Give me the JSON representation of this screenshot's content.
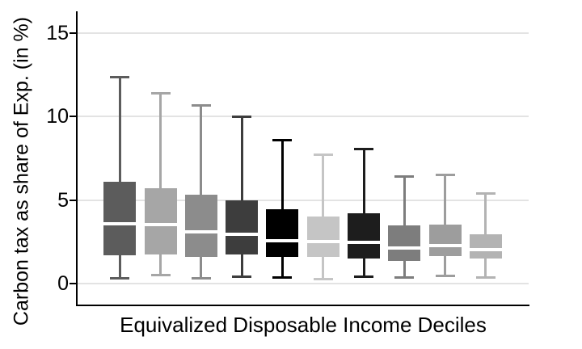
{
  "chart_data": {
    "type": "box",
    "title": "",
    "xlabel": "Equivalized Disposable Income Deciles",
    "ylabel": "Carbon tax as share of Exp. (in %)",
    "ylim": [
      0,
      16.3
    ],
    "yticks": [
      15,
      10,
      5,
      0
    ],
    "grid": true,
    "legend": "none",
    "x_tick_labels_visible": false,
    "gridline_color": "#e3e3e3",
    "axis_color": "#000000",
    "median_line_color": "#ffffff",
    "categories": [
      "1",
      "2",
      "3",
      "4",
      "5",
      "6",
      "7",
      "8",
      "9",
      "10"
    ],
    "series": [
      {
        "decile": "1",
        "whisker_low": 0.35,
        "q1": 1.7,
        "median": 3.6,
        "q3": 6.1,
        "whisker_high": 12.4,
        "color": "#5c5c5c"
      },
      {
        "decile": "2",
        "whisker_low": 0.55,
        "q1": 1.75,
        "median": 3.55,
        "q3": 5.7,
        "whisker_high": 11.4,
        "color": "#a6a6a6"
      },
      {
        "decile": "3",
        "whisker_low": 0.35,
        "q1": 1.6,
        "median": 3.1,
        "q3": 5.3,
        "whisker_high": 10.7,
        "color": "#8c8c8c"
      },
      {
        "decile": "4",
        "whisker_low": 0.45,
        "q1": 1.75,
        "median": 2.95,
        "q3": 5.0,
        "whisker_high": 10.0,
        "color": "#3d3d3d"
      },
      {
        "decile": "5",
        "whisker_low": 0.4,
        "q1": 1.6,
        "median": 2.55,
        "q3": 4.45,
        "whisker_high": 8.6,
        "color": "#000000"
      },
      {
        "decile": "6",
        "whisker_low": 0.3,
        "q1": 1.6,
        "median": 2.5,
        "q3": 4.0,
        "whisker_high": 7.75,
        "color": "#c5c5c5"
      },
      {
        "decile": "7",
        "whisker_low": 0.45,
        "q1": 1.5,
        "median": 2.45,
        "q3": 4.2,
        "whisker_high": 8.1,
        "color": "#1d1d1d"
      },
      {
        "decile": "8",
        "whisker_low": 0.4,
        "q1": 1.35,
        "median": 2.15,
        "q3": 3.5,
        "whisker_high": 6.45,
        "color": "#7d7d7d"
      },
      {
        "decile": "9",
        "whisker_low": 0.5,
        "q1": 1.65,
        "median": 2.25,
        "q3": 3.55,
        "whisker_high": 6.55,
        "color": "#9d9d9d"
      },
      {
        "decile": "10",
        "whisker_low": 0.4,
        "q1": 1.5,
        "median": 2.05,
        "q3": 2.95,
        "whisker_high": 5.4,
        "color": "#b3b3b3"
      }
    ]
  }
}
